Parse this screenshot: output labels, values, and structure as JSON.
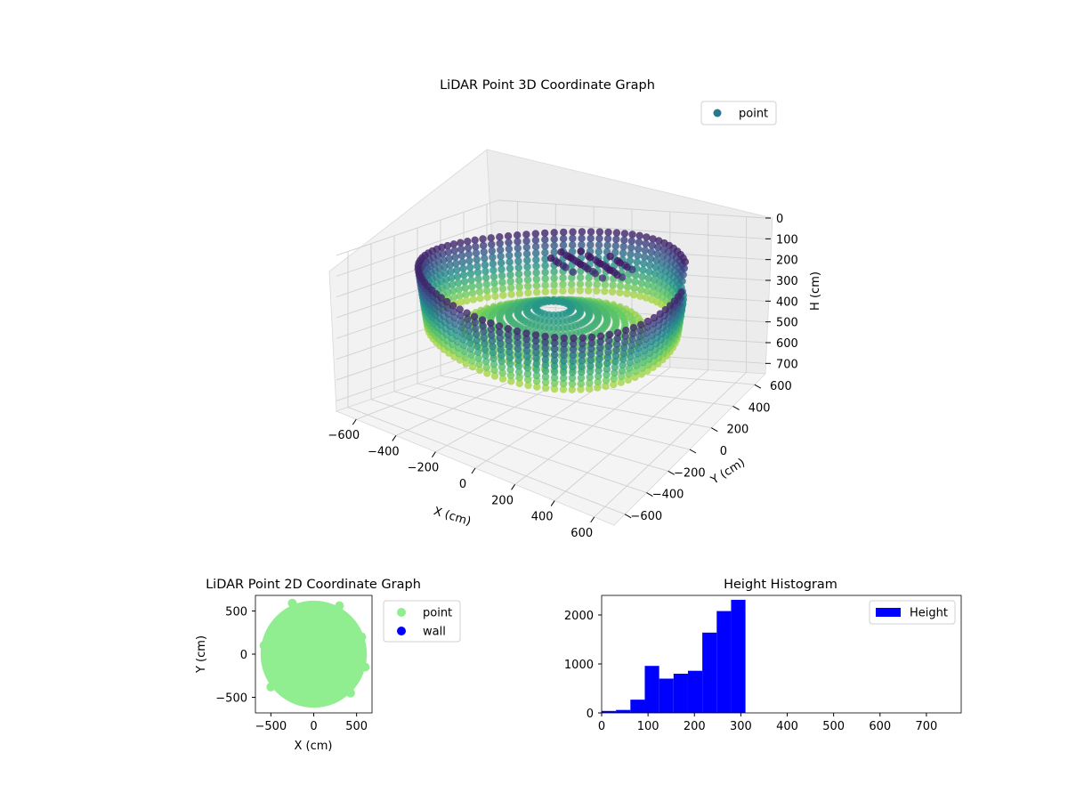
{
  "chart_data": [
    {
      "type": "scatter",
      "title": "LiDAR Point 3D Coordinate Graph",
      "xlabel": "X (cm)",
      "ylabel": "Y (cm)",
      "zlabel": "H (cm)",
      "xlim": [
        -700,
        700
      ],
      "ylim": [
        -700,
        700
      ],
      "zlim": [
        750,
        0
      ],
      "x_ticks": [
        "−600",
        "−400",
        "−200",
        "0",
        "200",
        "400",
        "600"
      ],
      "y_ticks": [
        "−600",
        "−400",
        "−200",
        "0",
        "200",
        "400",
        "600"
      ],
      "z_ticks": [
        "0",
        "100",
        "200",
        "300",
        "400",
        "500",
        "600",
        "700"
      ],
      "legend": {
        "position": "top-right",
        "entries": [
          {
            "name": "point",
            "color": "#2a788e"
          }
        ]
      },
      "colormap": "viridis",
      "grid": true,
      "series": [
        {
          "name": "point",
          "description_points": {
            "outer_ring": {
              "radius": 600,
              "h_min": 80,
              "h_max": 350
            },
            "inner_floor": {
              "radius_max": 400,
              "h": 260
            },
            "dark_cluster": {
              "x": [
                -100,
                250
              ],
              "y": [
                150,
                300
              ],
              "h": 80
            }
          }
        }
      ]
    },
    {
      "type": "scatter",
      "title": "LiDAR Point 2D Coordinate Graph",
      "xlabel": "X (cm)",
      "ylabel": "Y (cm)",
      "xlim": [
        -680,
        680
      ],
      "ylim": [
        -680,
        680
      ],
      "x_ticks": [
        "−500",
        "0",
        "500"
      ],
      "y_ticks": [
        "500",
        "0",
        "−500"
      ],
      "legend": {
        "position": "outside-right",
        "entries": [
          {
            "name": "point",
            "color": "#90ee90"
          },
          {
            "name": "wall",
            "color": "#0000ff"
          }
        ]
      },
      "series": [
        {
          "name": "point",
          "color": "#90ee90",
          "shape": "disc",
          "radius": 620
        },
        {
          "name": "wall",
          "color": "#0000ff",
          "values": []
        }
      ]
    },
    {
      "type": "bar",
      "title": "Height Histogram",
      "xlim": [
        0,
        775
      ],
      "ylim": [
        0,
        2400
      ],
      "x_ticks": [
        "0",
        "100",
        "200",
        "300",
        "400",
        "500",
        "600",
        "700"
      ],
      "y_ticks": [
        "0",
        "1000",
        "2000"
      ],
      "legend": {
        "position": "top-right",
        "entries": [
          {
            "name": "Height",
            "color": "#0000ff"
          }
        ]
      },
      "bin_width": 31,
      "bins_start": [
        0,
        31,
        62,
        93,
        124,
        155,
        186,
        217,
        248,
        279
      ],
      "values": [
        40,
        60,
        270,
        960,
        700,
        800,
        860,
        1640,
        2080,
        2310
      ],
      "color": "#0000ff"
    }
  ]
}
